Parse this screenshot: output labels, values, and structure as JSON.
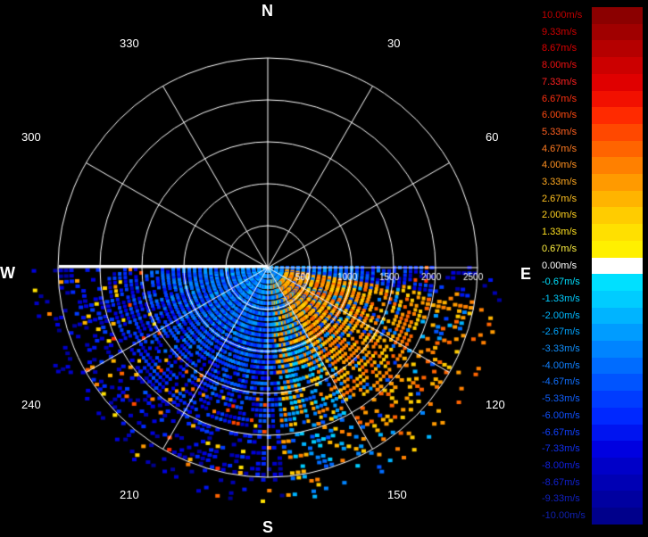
{
  "compass": {
    "north": "N",
    "south": "S",
    "east": "E",
    "west": "W"
  },
  "angle_labels": [
    "330",
    "30",
    "300",
    "60",
    "240",
    "120",
    "210",
    "150"
  ],
  "range_labels": [
    "500",
    "1000",
    "1500",
    "2000",
    "2500"
  ],
  "legend": [
    {
      "label": "10.00m/s",
      "color": "#8b0000",
      "text_color": "#c00000"
    },
    {
      "label": "9.33m/s",
      "color": "#a00000",
      "text_color": "#d00000"
    },
    {
      "label": "8.67m/s",
      "color": "#b50000",
      "text_color": "#e00000"
    },
    {
      "label": "8.00m/s",
      "color": "#cc0000",
      "text_color": "#ee1010"
    },
    {
      "label": "7.33m/s",
      "color": "#e00000",
      "text_color": "#ff2020"
    },
    {
      "label": "6.67m/s",
      "color": "#f21000",
      "text_color": "#ff3010"
    },
    {
      "label": "6.00m/s",
      "color": "#ff2a00",
      "text_color": "#ff4a10"
    },
    {
      "label": "5.33m/s",
      "color": "#ff4800",
      "text_color": "#ff6020"
    },
    {
      "label": "4.67m/s",
      "color": "#ff6400",
      "text_color": "#ff7a20"
    },
    {
      "label": "4.00m/s",
      "color": "#ff8000",
      "text_color": "#ff9020"
    },
    {
      "label": "3.33m/s",
      "color": "#ff9a00",
      "text_color": "#ffa820"
    },
    {
      "label": "2.67m/s",
      "color": "#ffb400",
      "text_color": "#ffc020"
    },
    {
      "label": "2.00m/s",
      "color": "#ffcc00",
      "text_color": "#ffd020"
    },
    {
      "label": "1.33m/s",
      "color": "#ffe000",
      "text_color": "#ffe020"
    },
    {
      "label": "0.67m/s",
      "color": "#fff000",
      "text_color": "#fff040"
    },
    {
      "label": "0.00m/s",
      "color": "#ffffff",
      "text_color": "#ffffff"
    },
    {
      "label": "-0.67m/s",
      "color": "#00e0ff",
      "text_color": "#00e0ff"
    },
    {
      "label": "-1.33m/s",
      "color": "#00ccff",
      "text_color": "#00ccff"
    },
    {
      "label": "-2.00m/s",
      "color": "#00b4ff",
      "text_color": "#00b8ff"
    },
    {
      "label": "-2.67m/s",
      "color": "#009cff",
      "text_color": "#00a4ff"
    },
    {
      "label": "-3.33m/s",
      "color": "#0084ff",
      "text_color": "#1090ff"
    },
    {
      "label": "-4.00m/s",
      "color": "#006cff",
      "text_color": "#1080ff"
    },
    {
      "label": "-4.67m/s",
      "color": "#0054ff",
      "text_color": "#1070ff"
    },
    {
      "label": "-5.33m/s",
      "color": "#003cff",
      "text_color": "#1060ff"
    },
    {
      "label": "-6.00m/s",
      "color": "#0028ff",
      "text_color": "#1050ff"
    },
    {
      "label": "-6.67m/s",
      "color": "#0014f0",
      "text_color": "#1040ff"
    },
    {
      "label": "-7.33m/s",
      "color": "#0000e0",
      "text_color": "#1030f0"
    },
    {
      "label": "-8.00m/s",
      "color": "#0000c8",
      "text_color": "#1020e0"
    },
    {
      "label": "-8.67m/s",
      "color": "#0000b4",
      "text_color": "#1020d0"
    },
    {
      "label": "-9.33m/s",
      "color": "#0000a0",
      "text_color": "#1020c0"
    },
    {
      "label": "-10.00m/s",
      "color": "#00008b",
      "text_color": "#1020b0"
    }
  ]
}
